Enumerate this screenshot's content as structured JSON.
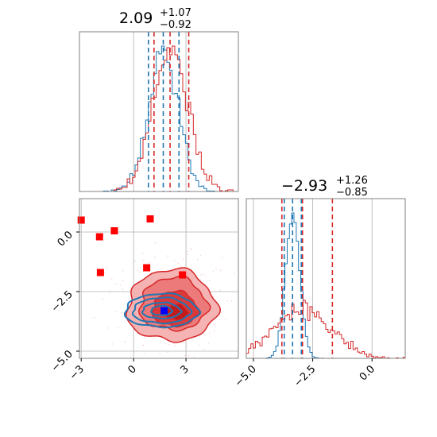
{
  "colors": {
    "red": "#d62728",
    "blue": "#1f77b4",
    "marker_red": "#ff0000",
    "marker_blue": "#0000ff",
    "grid": "#b0b0b0",
    "frame": "#808080"
  },
  "chart_data": [
    {
      "type": "histogram",
      "panel": "top-left",
      "title": {
        "value": "2.09",
        "plus": "+1.07",
        "minus": "−0.92"
      },
      "xlim": [
        -3.1,
        6.0
      ],
      "grid": true,
      "gridlines_x": [
        0,
        3
      ],
      "series": [
        {
          "color": "blue",
          "center": 1.7,
          "sigma": 0.85,
          "quantile_lines": [
            0.85,
            1.7,
            2.6
          ]
        },
        {
          "color": "red",
          "center": 2.09,
          "sigma": 1.0,
          "quantile_lines": [
            1.17,
            2.09,
            3.16
          ]
        }
      ]
    },
    {
      "type": "contour",
      "panel": "bottom-left",
      "xlim": [
        -3.1,
        6.0
      ],
      "ylim": [
        -5.3,
        1.4
      ],
      "x_ticks": [
        -3,
        0,
        3
      ],
      "x_tick_labels": [
        "−3",
        "0",
        "3"
      ],
      "y_ticks": [
        0.0,
        -2.5,
        -5.0
      ],
      "y_tick_labels": [
        "0.0",
        "−2.5",
        "−5.0"
      ],
      "grid": true,
      "red_markers": [
        {
          "x": -3.0,
          "y": 0.5
        },
        {
          "x": 0.95,
          "y": 0.55
        },
        {
          "x": -1.1,
          "y": 0.05
        },
        {
          "x": -1.95,
          "y": -0.2
        },
        {
          "x": -1.9,
          "y": -1.7
        },
        {
          "x": 0.75,
          "y": -1.5
        },
        {
          "x": 2.8,
          "y": -1.8
        }
      ],
      "blue_marker": {
        "x": 1.75,
        "y": -3.3
      }
    },
    {
      "type": "histogram",
      "panel": "bottom-right",
      "title": {
        "value": "−2.93",
        "plus": "+1.26",
        "minus": "−0.85"
      },
      "xlim": [
        -5.3,
        1.4
      ],
      "x_ticks": [
        -5.0,
        -2.5,
        0.0
      ],
      "x_tick_labels": [
        "−5.0",
        "−2.5",
        "0.0"
      ],
      "grid": true,
      "series": [
        {
          "color": "blue",
          "center": -3.35,
          "sigma": 0.3,
          "quantile_lines": [
            -3.7,
            -3.35,
            -2.98
          ]
        },
        {
          "color": "red",
          "center": -2.93,
          "sigma": 1.2,
          "quantile_lines": [
            -3.8,
            -2.93,
            -1.67
          ]
        }
      ]
    }
  ]
}
